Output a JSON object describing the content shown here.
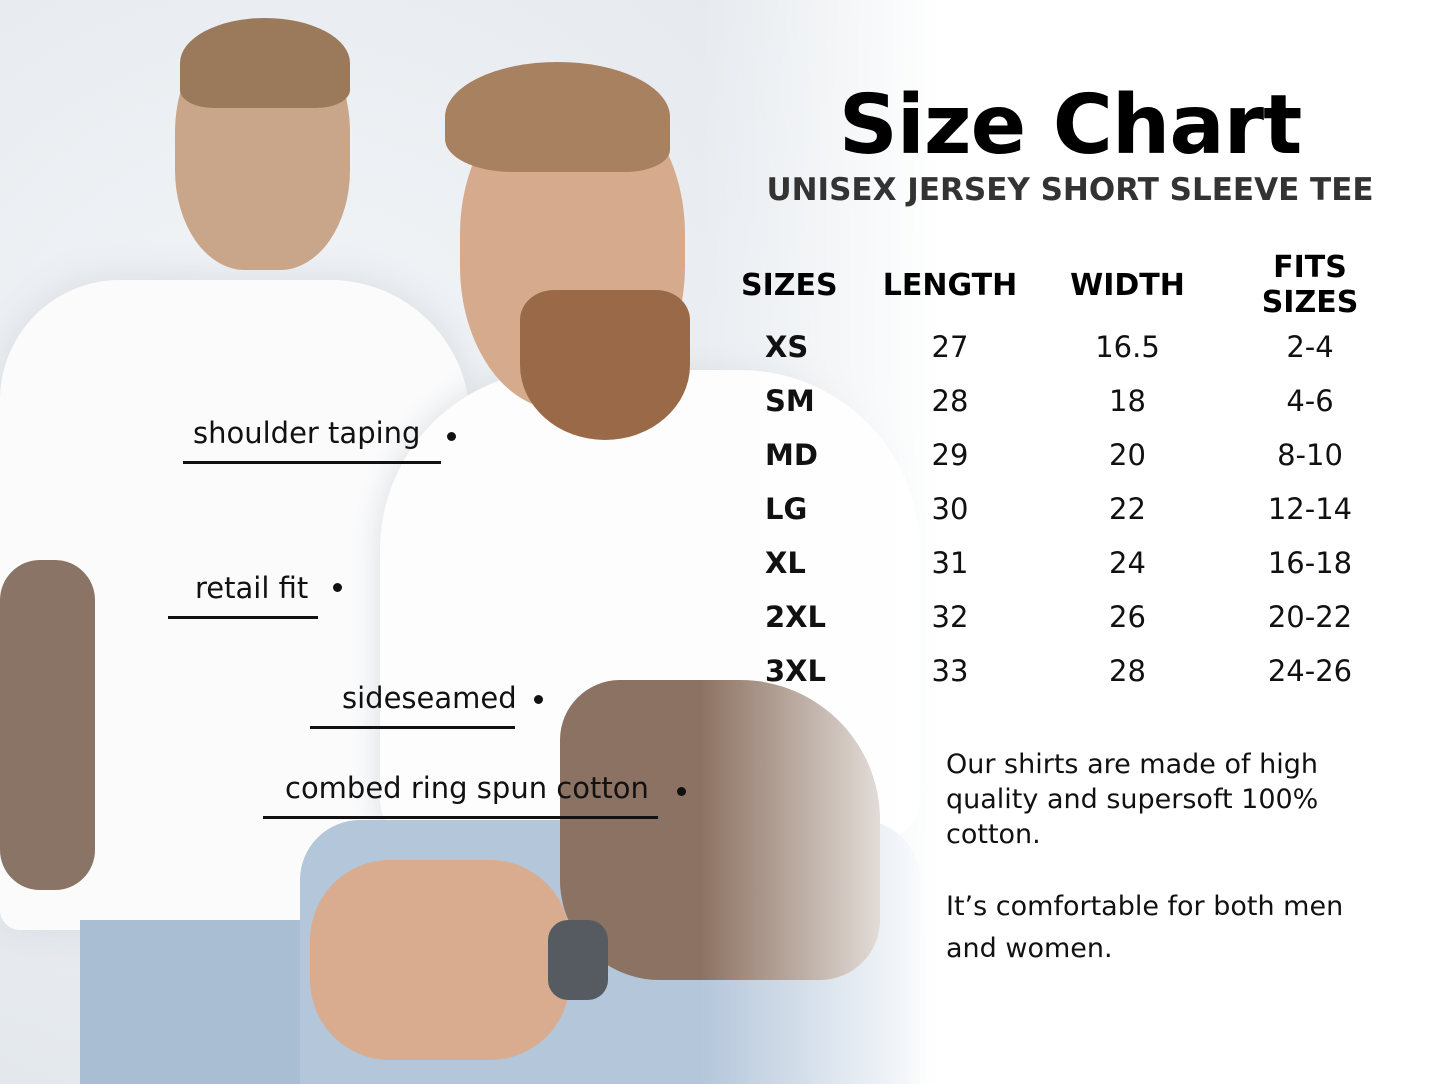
{
  "title": "Size Chart",
  "subtitle": "UNISEX JERSEY SHORT SLEEVE TEE",
  "table": {
    "headers": [
      "SIZES",
      "LENGTH",
      "WIDTH",
      "FITS SIZES"
    ],
    "rows": [
      [
        "XS",
        "27",
        "16.5",
        "2-4"
      ],
      [
        "SM",
        "28",
        "18",
        "4-6"
      ],
      [
        "MD",
        "29",
        "20",
        "8-10"
      ],
      [
        "LG",
        "30",
        "22",
        "12-14"
      ],
      [
        "XL",
        "31",
        "24",
        "16-18"
      ],
      [
        "2XL",
        "32",
        "26",
        "20-22"
      ],
      [
        "3XL",
        "33",
        "28",
        "24-26"
      ]
    ]
  },
  "annotations": [
    "shoulder taping",
    "retail fit",
    "sideseamed",
    "combed ring spun cotton"
  ],
  "description": [
    "Our shirts are made of  high quality and supersoft 100% cotton.",
    "It’s comfortable for both men and women."
  ]
}
